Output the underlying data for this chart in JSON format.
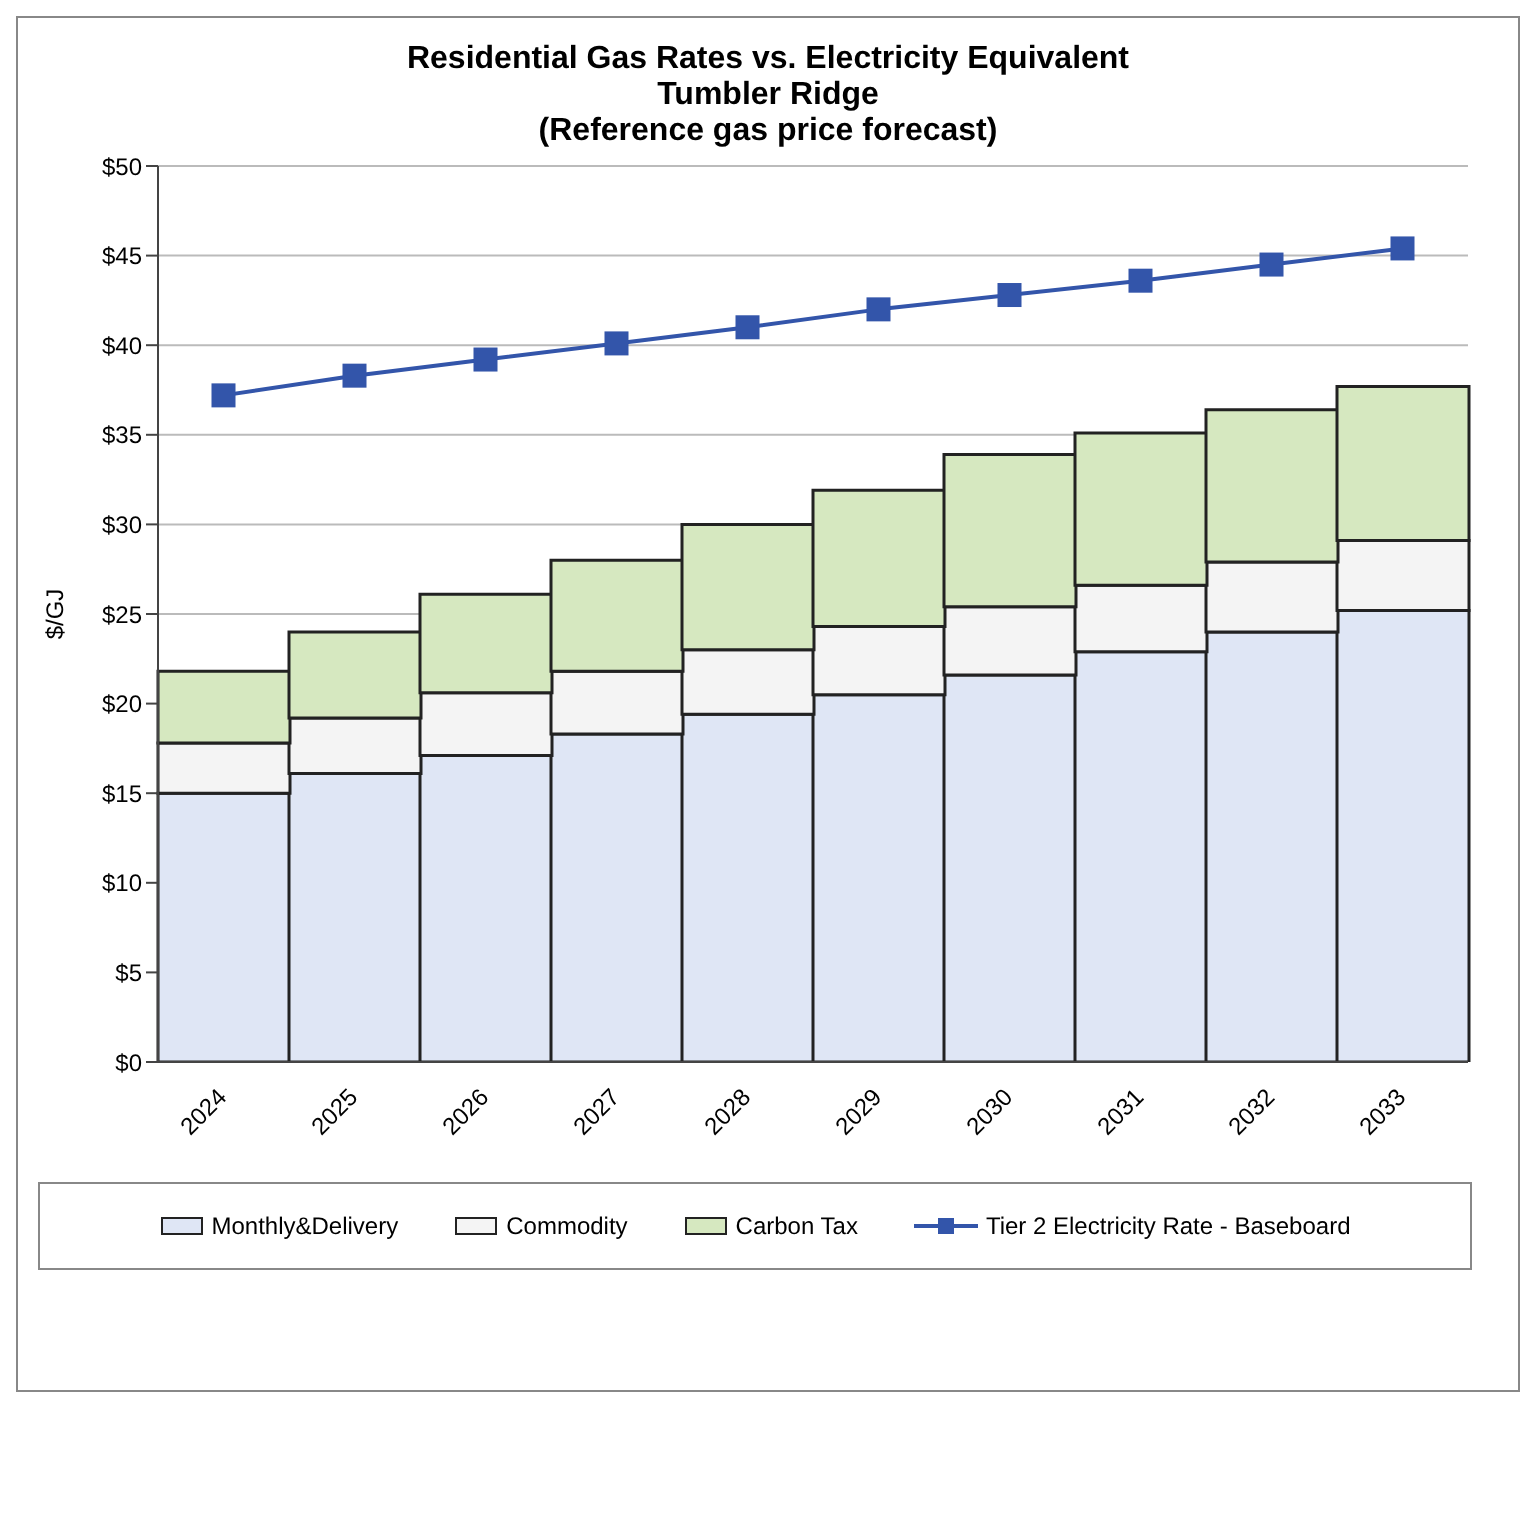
{
  "chart_data": {
    "type": "bar",
    "title": "Residential Gas Rates vs. Electricity Equivalent\nTumbler Ridge\n(Reference gas price forecast)",
    "ylabel": "$/GJ",
    "categories": [
      "2024",
      "2025",
      "2026",
      "2027",
      "2028",
      "2029",
      "2030",
      "2031",
      "2032",
      "2033"
    ],
    "stacked": true,
    "series": [
      {
        "name": "Monthly&Delivery",
        "color": "#dfe6f5",
        "values": [
          15.0,
          16.1,
          17.1,
          18.3,
          19.4,
          20.5,
          21.6,
          22.9,
          24.0,
          25.2
        ]
      },
      {
        "name": "Commodity",
        "color": "#f4f4f4",
        "values": [
          2.8,
          3.1,
          3.5,
          3.5,
          3.6,
          3.8,
          3.8,
          3.7,
          3.9,
          3.9
        ]
      },
      {
        "name": "Carbon Tax",
        "color": "#d6e8c0",
        "values": [
          4.0,
          4.8,
          5.5,
          6.2,
          7.0,
          7.6,
          8.5,
          8.5,
          8.5,
          8.6
        ]
      },
      {
        "name": "Tier 2 Electricity Rate - Baseboard",
        "type": "line",
        "color": "#3355aa",
        "marker": "square",
        "values": [
          37.2,
          38.3,
          39.2,
          40.1,
          41.0,
          42.0,
          42.8,
          43.6,
          44.5,
          45.4
        ]
      }
    ],
    "ylim": [
      0,
      50
    ],
    "yticks": [
      {
        "value": 0,
        "label": "$0"
      },
      {
        "value": 5,
        "label": "$5"
      },
      {
        "value": 10,
        "label": "$10"
      },
      {
        "value": 15,
        "label": "$15"
      },
      {
        "value": 20,
        "label": "$20"
      },
      {
        "value": 25,
        "label": "$25"
      },
      {
        "value": 30,
        "label": "$30"
      },
      {
        "value": 35,
        "label": "$35"
      },
      {
        "value": 40,
        "label": "$40"
      },
      {
        "value": 45,
        "label": "$45"
      },
      {
        "value": 50,
        "label": "$50"
      }
    ],
    "grid": "y",
    "legend": "bottom"
  }
}
